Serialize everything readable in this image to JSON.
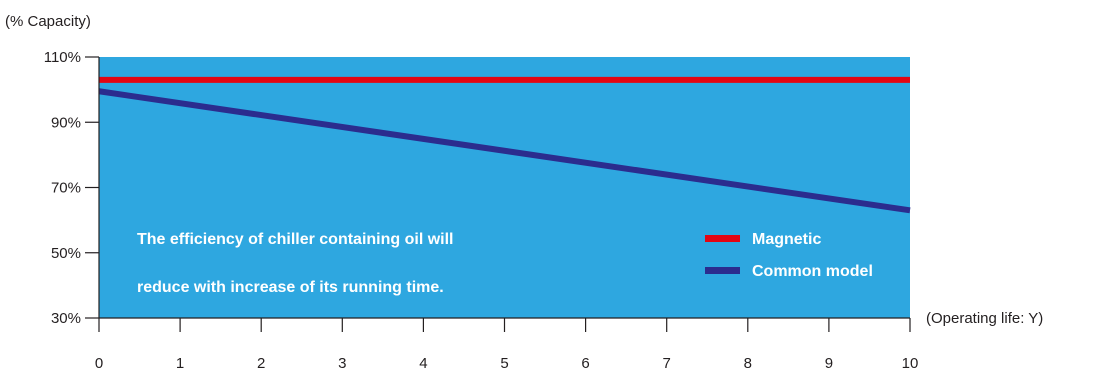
{
  "chart_data": {
    "type": "line",
    "ylabel": "(% Capacity)",
    "xlabel": "(Operating life: Y)",
    "x": [
      0,
      1,
      2,
      3,
      4,
      5,
      6,
      7,
      8,
      9,
      10
    ],
    "xlim": [
      0,
      10
    ],
    "ylim": [
      30,
      110
    ],
    "yticks": [
      30,
      50,
      70,
      90,
      110
    ],
    "ytick_labels": [
      "30%",
      "50%",
      "70%",
      "90%",
      "110%"
    ],
    "xtick_labels": [
      "0",
      "1",
      "2",
      "3",
      "4",
      "5",
      "6",
      "7",
      "8",
      "9",
      "10"
    ],
    "series": [
      {
        "name": "Magnetic",
        "color": "#e30613",
        "points": [
          [
            0,
            103
          ],
          [
            10,
            103
          ]
        ]
      },
      {
        "name": "Common model",
        "color": "#2b2c8e",
        "points": [
          [
            0,
            99.5
          ],
          [
            10,
            63
          ]
        ]
      }
    ],
    "annotation": [
      "The efficiency of chiller containing oil will",
      "reduce with increase of its running time."
    ],
    "plot_background": "#2ea7e0",
    "legend_position": "lower-right inside plot",
    "grid": false
  }
}
